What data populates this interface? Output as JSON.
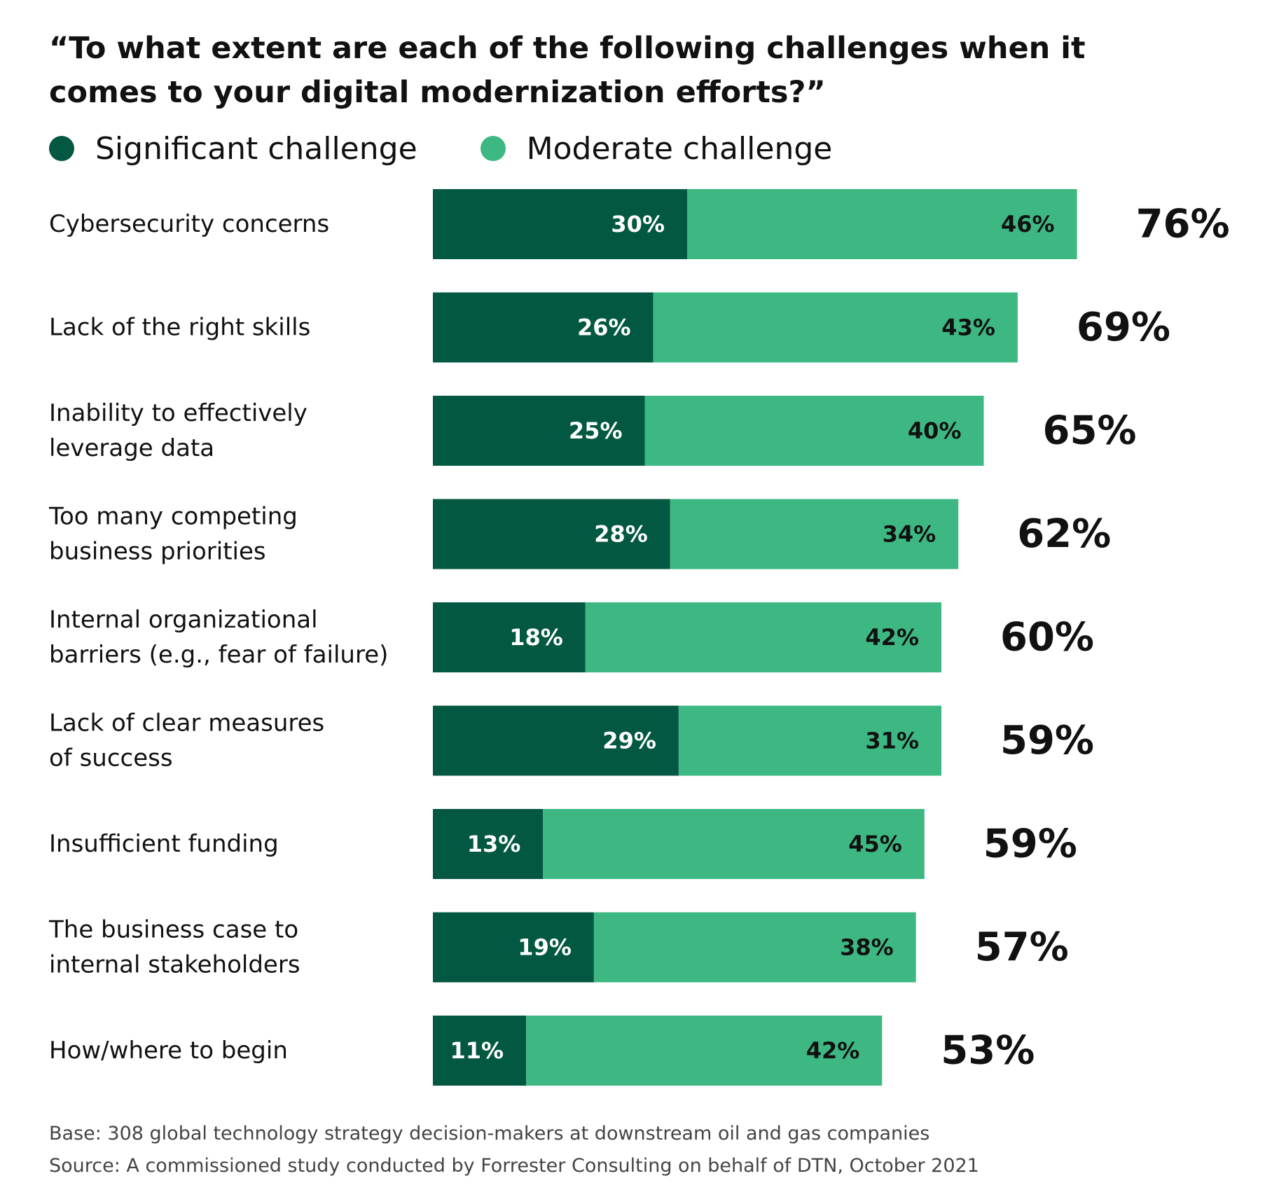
{
  "header": {
    "title": "“To what extent are each of the following challenges when it comes to your digital modernization efforts?”"
  },
  "legend": [
    {
      "label": "Significant challenge",
      "color": "#035841"
    },
    {
      "label": "Moderate challenge",
      "color": "#3eb883"
    }
  ],
  "chart_data": {
    "type": "bar",
    "orientation": "horizontal",
    "stacked": true,
    "categories": [
      [
        "Cybersecurity concerns"
      ],
      [
        "Lack of the right skills"
      ],
      [
        "Inability to effectively",
        "leverage data"
      ],
      [
        "Too many competing",
        "business priorities"
      ],
      [
        "Internal organizational",
        "barriers (e.g., fear of failure)"
      ],
      [
        "Lack of clear measures",
        "of success"
      ],
      [
        "Insufficient funding"
      ],
      [
        "The business case to",
        "internal stakeholders"
      ],
      [
        "How/where to begin"
      ]
    ],
    "series": [
      {
        "name": "Significant challenge",
        "color": "#035841",
        "label_color": "#ffffff",
        "values": [
          30,
          26,
          25,
          28,
          18,
          29,
          13,
          19,
          11
        ]
      },
      {
        "name": "Moderate challenge",
        "color": "#3eb883",
        "label_color": "#111111",
        "values": [
          46,
          43,
          40,
          34,
          42,
          31,
          45,
          38,
          42
        ]
      }
    ],
    "totals": [
      76,
      69,
      65,
      62,
      60,
      59,
      59,
      57,
      53
    ],
    "value_suffix": "%",
    "xlim": [
      0,
      100
    ],
    "grid": false,
    "legend_position": "top-left"
  },
  "notes": {
    "base": "Base: 308 global technology strategy decision-makers at downstream oil and gas companies",
    "source": "Source: A commissioned study conducted by Forrester Consulting on behalf of DTN, October 2021"
  }
}
